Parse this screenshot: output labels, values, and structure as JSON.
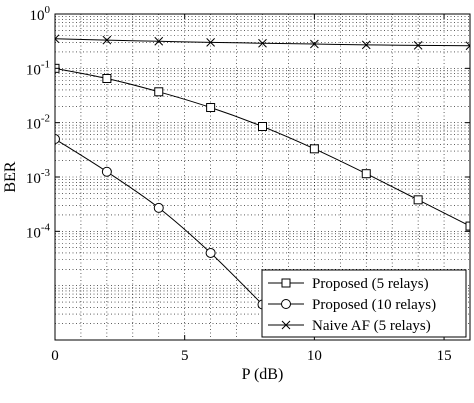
{
  "chart_data": {
    "type": "line",
    "title": "",
    "xlabel": "P (dB)",
    "ylabel": "BER",
    "xscale": "linear",
    "yscale": "log",
    "xlim": [
      0,
      16
    ],
    "ylim": [
      1e-06,
      1
    ],
    "xticks": [
      0,
      5,
      10,
      15
    ],
    "xtick_labels": [
      "0",
      "5",
      "10",
      "15"
    ],
    "yticks": [
      0.0001,
      0.001,
      0.01,
      0.1,
      1
    ],
    "ytick_labels": [
      {
        "base": "10",
        "exp": "-4"
      },
      {
        "base": "10",
        "exp": "-3"
      },
      {
        "base": "10",
        "exp": "-2"
      },
      {
        "base": "10",
        "exp": "-1"
      },
      {
        "base": "10",
        "exp": "0"
      }
    ],
    "grid": true,
    "legend_position": "bottom-right",
    "series": [
      {
        "name": "Proposed (5 relays)",
        "marker": "square",
        "x": [
          0,
          2,
          4,
          6,
          8,
          10,
          12,
          14,
          16
        ],
        "y": [
          0.1,
          0.065,
          0.037,
          0.019,
          0.0085,
          0.0033,
          0.00115,
          0.00038,
          0.000125
        ]
      },
      {
        "name": "Proposed (10 relays)",
        "marker": "circle",
        "x": [
          0,
          2,
          4,
          6,
          8
        ],
        "y": [
          0.005,
          0.00125,
          0.00027,
          4e-05,
          4.5e-06
        ]
      },
      {
        "name": "Naive AF (5 relays)",
        "marker": "x",
        "x": [
          0,
          2,
          4,
          6,
          8,
          10,
          12,
          14,
          16
        ],
        "y": [
          0.35,
          0.33,
          0.315,
          0.3,
          0.29,
          0.28,
          0.27,
          0.265,
          0.26
        ]
      }
    ]
  }
}
